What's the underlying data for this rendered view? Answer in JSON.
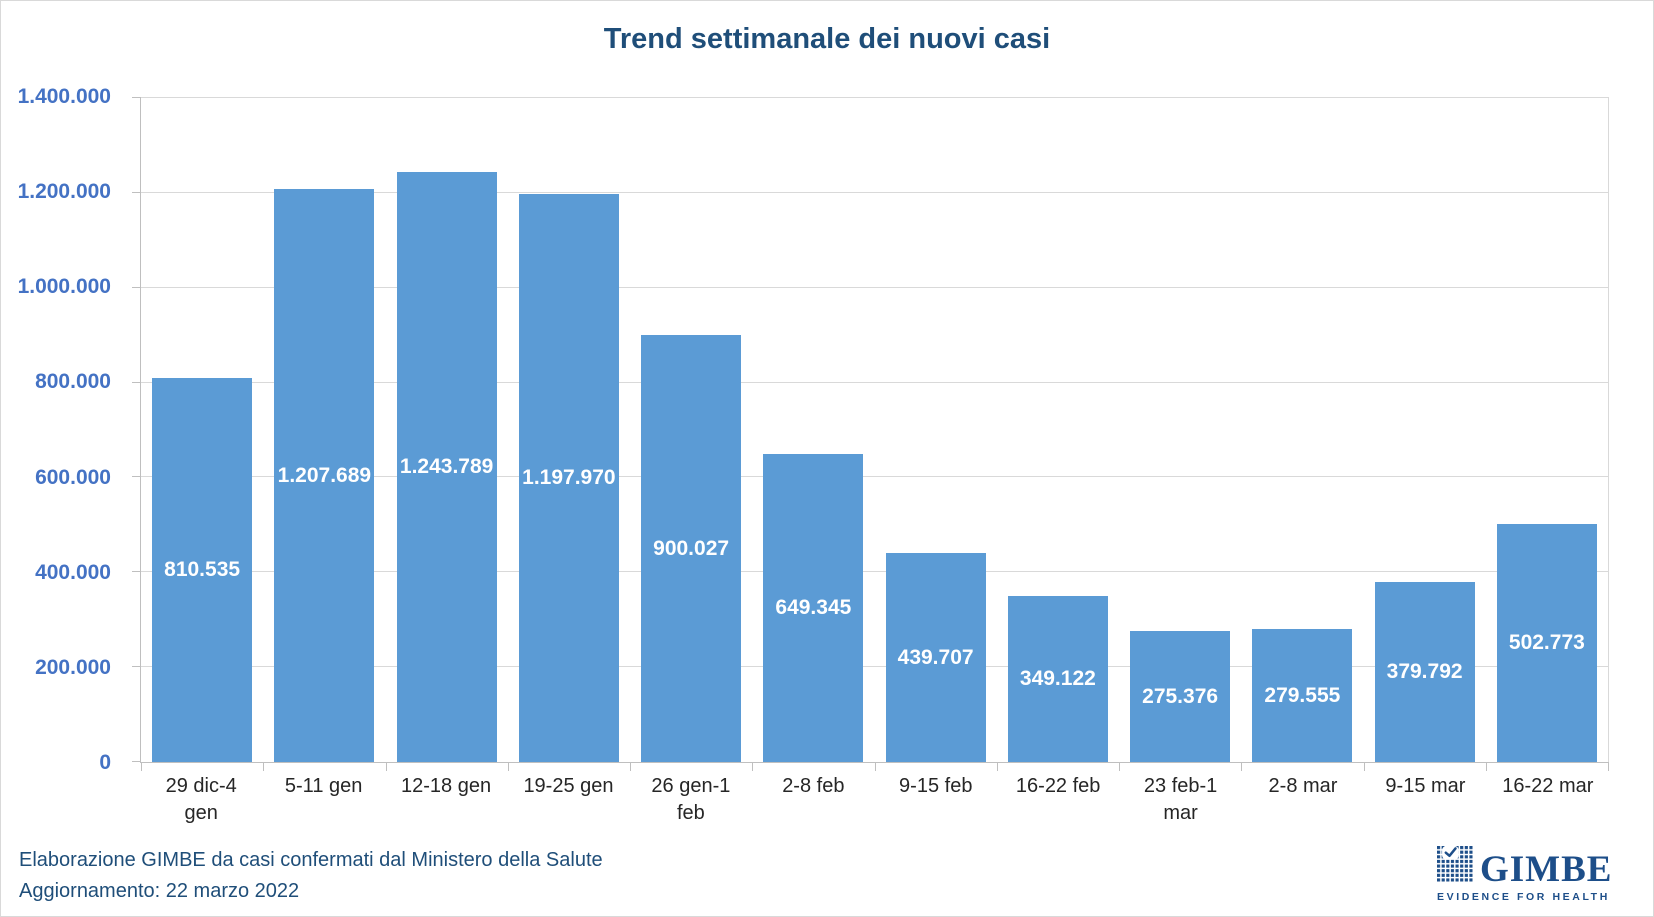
{
  "title": "Trend settimanale dei nuovi casi",
  "chart_data": {
    "type": "bar",
    "title": "Trend settimanale dei nuovi casi",
    "categories": [
      "29 dic-4\ngen",
      "5-11 gen",
      "12-18 gen",
      "19-25 gen",
      "26 gen-1\nfeb",
      "2-8 feb",
      "9-15 feb",
      "16-22 feb",
      "23 feb-1\nmar",
      "2-8 mar",
      "9-15 mar",
      "16-22 mar"
    ],
    "values": [
      810535,
      1207689,
      1243789,
      1197970,
      900027,
      649345,
      439707,
      349122,
      275376,
      279555,
      379792,
      502773
    ],
    "data_labels": [
      "810.535",
      "1.207.689",
      "1.243.789",
      "1.197.970",
      "900.027",
      "649.345",
      "439.707",
      "349.122",
      "275.376",
      "279.555",
      "379.792",
      "502.773"
    ],
    "xlabel": "",
    "ylabel": "",
    "ylim": [
      0,
      1400000
    ],
    "y_tick_step": 200000,
    "y_tick_labels": [
      "0",
      "200.000",
      "400.000",
      "600.000",
      "800.000",
      "1.000.000",
      "1.200.000",
      "1.400.000"
    ],
    "grid": true,
    "legend": false,
    "data_label_position": "inside-center"
  },
  "footer": {
    "source_line": "Elaborazione GIMBE da casi confermati dal Ministero della Salute",
    "update_line": "Aggiornamento: 22 marzo 2022"
  },
  "logo": {
    "text": "GIMBE",
    "tagline": "EVIDENCE FOR HEALTH"
  },
  "colors": {
    "bar": "#5B9BD5",
    "title": "#1F4E79",
    "y_tick_labels": "#4472C4",
    "x_tick_labels": "#262626",
    "gridline": "#D9D9D9",
    "axis": "#BFBFBF",
    "data_label": "#FFFFFF",
    "footer_text": "#1F4E79",
    "logo": "#1D4E89"
  }
}
